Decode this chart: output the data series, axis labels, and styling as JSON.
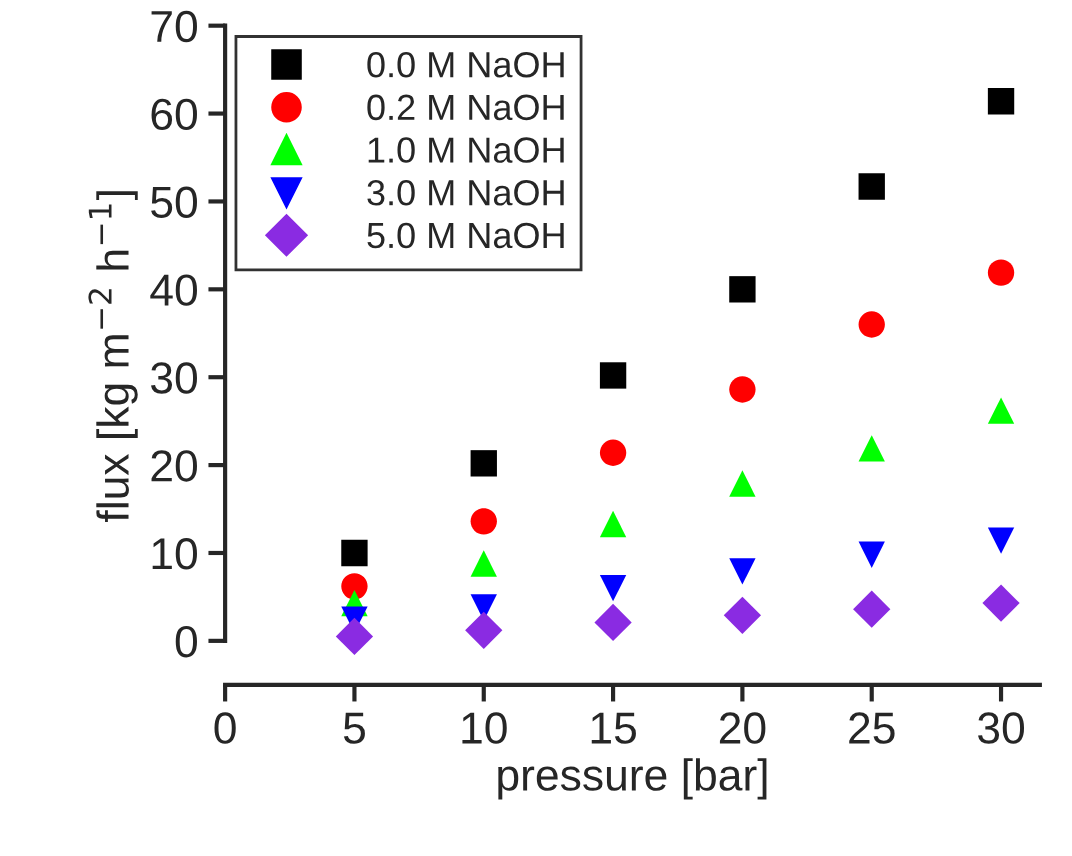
{
  "chart_data": {
    "type": "scatter",
    "xlabel": "pressure [bar]",
    "ylabel": "flux [kg m$^{−2}$ h$^{−1}$]",
    "x": [
      5,
      10,
      15,
      20,
      25,
      30
    ],
    "series": [
      {
        "name": "0.0 M NaOH",
        "color": "#000000",
        "marker": "square",
        "values": [
          10.0,
          20.2,
          30.2,
          40.0,
          51.7,
          61.4
        ]
      },
      {
        "name": "0.2 M NaOH",
        "color": "#ff0000",
        "marker": "circle",
        "values": [
          6.2,
          13.6,
          21.4,
          28.6,
          36.0,
          41.9
        ]
      },
      {
        "name": "1.0 M NaOH",
        "color": "#00ff00",
        "marker": "triangle",
        "values": [
          4.3,
          8.8,
          13.3,
          17.9,
          21.9,
          26.2
        ]
      },
      {
        "name": "3.0 M NaOH",
        "color": "#0000ff",
        "marker": "triangle_down",
        "values": [
          2.4,
          3.8,
          6.0,
          7.9,
          9.8,
          11.4
        ]
      },
      {
        "name": "5.0 M NaOH",
        "color": "#8a2be2",
        "marker": "diamond",
        "values": [
          0.5,
          1.2,
          2.1,
          2.9,
          3.6,
          4.3
        ]
      }
    ],
    "xlim": [
      0,
      31.5
    ],
    "xticks": [
      0,
      5,
      10,
      15,
      20,
      25,
      30
    ],
    "ylim": [
      -5,
      70
    ],
    "yticks": [
      0,
      10,
      20,
      30,
      40,
      50,
      60,
      70
    ],
    "grid": false,
    "legend": "top left"
  }
}
